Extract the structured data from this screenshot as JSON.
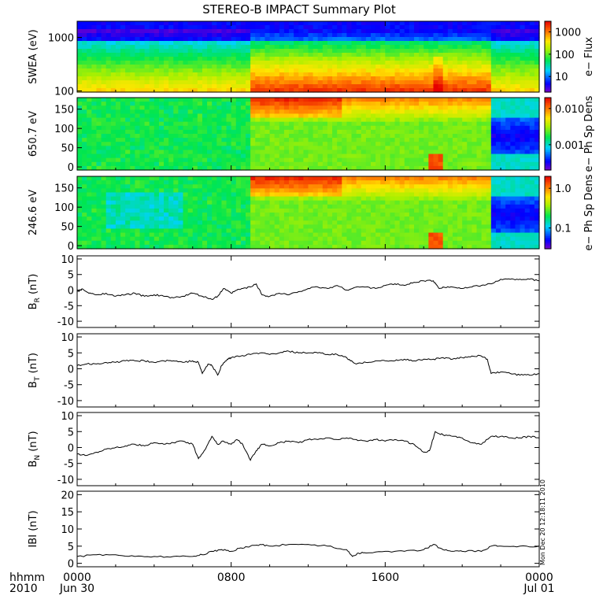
{
  "chart_data": {
    "type": "line",
    "title": "STEREO-B IMPACT Summary Plot",
    "x_axis": {
      "label_top": "hhmm",
      "label_bottom": "2010",
      "range_hours": [
        0,
        24
      ],
      "ticks": [
        {
          "hour": 0,
          "label": "0000",
          "sublabel": "Jun 30"
        },
        {
          "hour": 8,
          "label": "0800",
          "sublabel": ""
        },
        {
          "hour": 16,
          "label": "1600",
          "sublabel": ""
        },
        {
          "hour": 24,
          "label": "0000",
          "sublabel": "Jul 01"
        }
      ]
    },
    "spectrograms": [
      {
        "id": "swea",
        "ylabel": "SWEA (eV)",
        "scale": "log",
        "ylim": [
          95,
          2000
        ],
        "yticks": [
          {
            "v": 100,
            "label": "100"
          },
          {
            "v": 1000,
            "label": "1000"
          }
        ],
        "colorbar_label": "e− Flux",
        "colorbar_scale": "log",
        "colorbar_range": [
          2,
          3000
        ],
        "colorbar_ticks": [
          {
            "v": 10,
            "label": "10"
          },
          {
            "v": 100,
            "label": "100"
          },
          {
            "v": 1000,
            "label": "1000"
          }
        ]
      },
      {
        "id": "pad650",
        "ylabel": "650.7 eV",
        "scale": "linear",
        "ylim": [
          -8,
          180
        ],
        "yticks": [
          {
            "v": 0,
            "label": "0"
          },
          {
            "v": 50,
            "label": "50"
          },
          {
            "v": 100,
            "label": "100"
          },
          {
            "v": 150,
            "label": "150"
          }
        ],
        "colorbar_label": "e− Ph Sp Dens",
        "colorbar_scale": "log",
        "colorbar_range": [
          0.0002,
          0.02
        ],
        "colorbar_ticks": [
          {
            "v": 0.001,
            "label": "0.001"
          },
          {
            "v": 0.01,
            "label": "0.010"
          }
        ]
      },
      {
        "id": "pad246",
        "ylabel": "246.6 eV",
        "scale": "linear",
        "ylim": [
          -8,
          180
        ],
        "yticks": [
          {
            "v": 0,
            "label": "0"
          },
          {
            "v": 50,
            "label": "50"
          },
          {
            "v": 100,
            "label": "100"
          },
          {
            "v": 150,
            "label": "150"
          }
        ],
        "colorbar_label": "e− Ph Sp Dens",
        "colorbar_scale": "log",
        "colorbar_range": [
          0.03,
          2
        ],
        "colorbar_ticks": [
          {
            "v": 0.1,
            "label": "0.1"
          },
          {
            "v": 1.0,
            "label": "1.0"
          }
        ]
      }
    ],
    "series": [
      {
        "name": "BR",
        "ylabel_main": "B",
        "ylabel_sub": "R",
        "ylabel_unit": "(nT)",
        "ylim": [
          -12,
          11
        ],
        "yticks": [
          -10,
          -5,
          0,
          5,
          10
        ],
        "x_hours": [
          0,
          0.3,
          0.6,
          1,
          1.5,
          2,
          2.5,
          3,
          3.5,
          4,
          4.5,
          5,
          5.5,
          6,
          6.5,
          7,
          7.3,
          7.6,
          8,
          8.3,
          8.6,
          9,
          9.3,
          9.6,
          10,
          10.5,
          11,
          11.5,
          12,
          12.5,
          13,
          13.5,
          14,
          14.5,
          15,
          15.5,
          16,
          16.5,
          17,
          17.5,
          18,
          18.5,
          18.8,
          19,
          19.5,
          20,
          20.5,
          21,
          21.5,
          22,
          22.5,
          23,
          23.5,
          24
        ],
        "values": [
          -0.5,
          0.3,
          -1.0,
          -1.5,
          -1.0,
          -2.0,
          -1.5,
          -1.0,
          -2.0,
          -1.5,
          -2.0,
          -2.5,
          -2.0,
          -1.0,
          -2.0,
          -3.0,
          -2.0,
          0.5,
          -1.0,
          0.0,
          0.5,
          1.0,
          2.0,
          -1.5,
          -2.0,
          -1.0,
          -1.5,
          -0.5,
          0.5,
          1.0,
          0.5,
          1.5,
          0.0,
          1.0,
          1.0,
          0.5,
          1.5,
          2.0,
          1.5,
          2.5,
          3.0,
          3.0,
          0.5,
          1.0,
          1.0,
          0.5,
          1.0,
          1.5,
          2.0,
          3.5,
          3.5,
          3.5,
          3.5,
          3.0
        ]
      },
      {
        "name": "BT",
        "ylabel_main": "B",
        "ylabel_sub": "T",
        "ylabel_unit": "(nT)",
        "ylim": [
          -12,
          11
        ],
        "yticks": [
          -10,
          -5,
          0,
          5,
          10
        ],
        "x_hours": [
          0,
          0.5,
          1,
          1.5,
          2,
          2.5,
          3,
          3.5,
          4,
          4.5,
          5,
          5.5,
          6,
          6.3,
          6.5,
          6.8,
          7,
          7.3,
          7.5,
          7.8,
          8,
          8.5,
          9,
          9.5,
          10,
          10.5,
          11,
          11.5,
          12,
          12.5,
          13,
          13.5,
          14,
          14.2,
          14.5,
          15,
          15.5,
          16,
          16.5,
          17,
          17.5,
          18,
          18.5,
          19,
          19.5,
          20,
          20.5,
          21,
          21.3,
          21.5,
          22,
          22.5,
          23,
          23.5,
          24
        ],
        "values": [
          1.0,
          1.5,
          1.5,
          2.0,
          2.0,
          2.5,
          2.5,
          2.5,
          2.0,
          2.5,
          2.5,
          2.0,
          2.5,
          2.0,
          -1.5,
          1.5,
          1.0,
          -2.0,
          1.0,
          3.0,
          3.5,
          4.0,
          4.5,
          5.0,
          4.5,
          5.0,
          5.5,
          5.0,
          5.0,
          5.0,
          4.5,
          4.5,
          3.5,
          2.5,
          1.5,
          2.0,
          2.5,
          2.5,
          2.5,
          3.0,
          2.5,
          3.0,
          3.0,
          3.5,
          3.0,
          3.5,
          4.0,
          4.0,
          3.0,
          -1.5,
          -1.0,
          -1.5,
          -2.0,
          -2.0,
          -1.5
        ]
      },
      {
        "name": "BN",
        "ylabel_main": "B",
        "ylabel_sub": "N",
        "ylabel_unit": "(nT)",
        "ylim": [
          -12,
          11
        ],
        "yticks": [
          -10,
          -5,
          0,
          5,
          10
        ],
        "x_hours": [
          0,
          0.5,
          1,
          1.5,
          2,
          2.5,
          3,
          3.5,
          4,
          4.5,
          5,
          5.5,
          6,
          6.3,
          6.6,
          7,
          7.3,
          7.6,
          8,
          8.3,
          8.6,
          9,
          9.3,
          9.6,
          10,
          10.5,
          11,
          11.5,
          12,
          12.5,
          13,
          13.5,
          14,
          14.5,
          15,
          15.5,
          16,
          16.5,
          17,
          17.5,
          18,
          18.3,
          18.6,
          19,
          19.5,
          20,
          20.5,
          21,
          21.5,
          22,
          22.5,
          23,
          23.5,
          24
        ],
        "values": [
          -2.0,
          -2.5,
          -1.5,
          -0.5,
          0.0,
          0.5,
          1.0,
          0.5,
          1.5,
          1.0,
          1.5,
          2.0,
          1.0,
          -3.5,
          -1.0,
          3.5,
          1.0,
          2.0,
          1.0,
          2.5,
          1.0,
          -4.0,
          -1.0,
          1.0,
          0.5,
          1.5,
          2.0,
          1.5,
          2.5,
          2.5,
          3.0,
          2.5,
          3.0,
          2.5,
          2.0,
          2.5,
          2.0,
          2.5,
          2.0,
          1.0,
          -1.5,
          -1.0,
          5.0,
          4.0,
          3.5,
          3.0,
          1.5,
          1.0,
          3.5,
          3.5,
          3.0,
          3.0,
          3.5,
          3.0
        ]
      },
      {
        "name": "|B|",
        "ylabel_main": "IBI",
        "ylabel_sub": "",
        "ylabel_unit": "(nT)",
        "ylim": [
          -1,
          21
        ],
        "yticks": [
          0,
          5,
          10,
          15,
          20
        ],
        "x_hours": [
          0,
          1,
          2,
          3,
          4,
          5,
          6,
          6.5,
          7,
          7.5,
          8,
          8.5,
          9,
          9.5,
          10,
          11,
          12,
          13,
          14,
          14.3,
          14.6,
          15,
          16,
          17,
          18,
          18.5,
          19,
          19.5,
          20,
          21,
          21.5,
          22,
          23,
          24
        ],
        "values": [
          2.0,
          2.5,
          2.5,
          2.0,
          2.0,
          2.0,
          2.0,
          2.5,
          3.5,
          4.0,
          3.5,
          4.5,
          5.0,
          5.5,
          5.0,
          5.5,
          5.5,
          5.0,
          4.0,
          2.0,
          3.0,
          3.0,
          3.5,
          3.5,
          4.0,
          5.5,
          4.0,
          3.5,
          3.5,
          3.5,
          5.0,
          5.0,
          5.0,
          5.0
        ]
      }
    ],
    "annotation": "Mon Dec 20 12:18:11 2010"
  }
}
